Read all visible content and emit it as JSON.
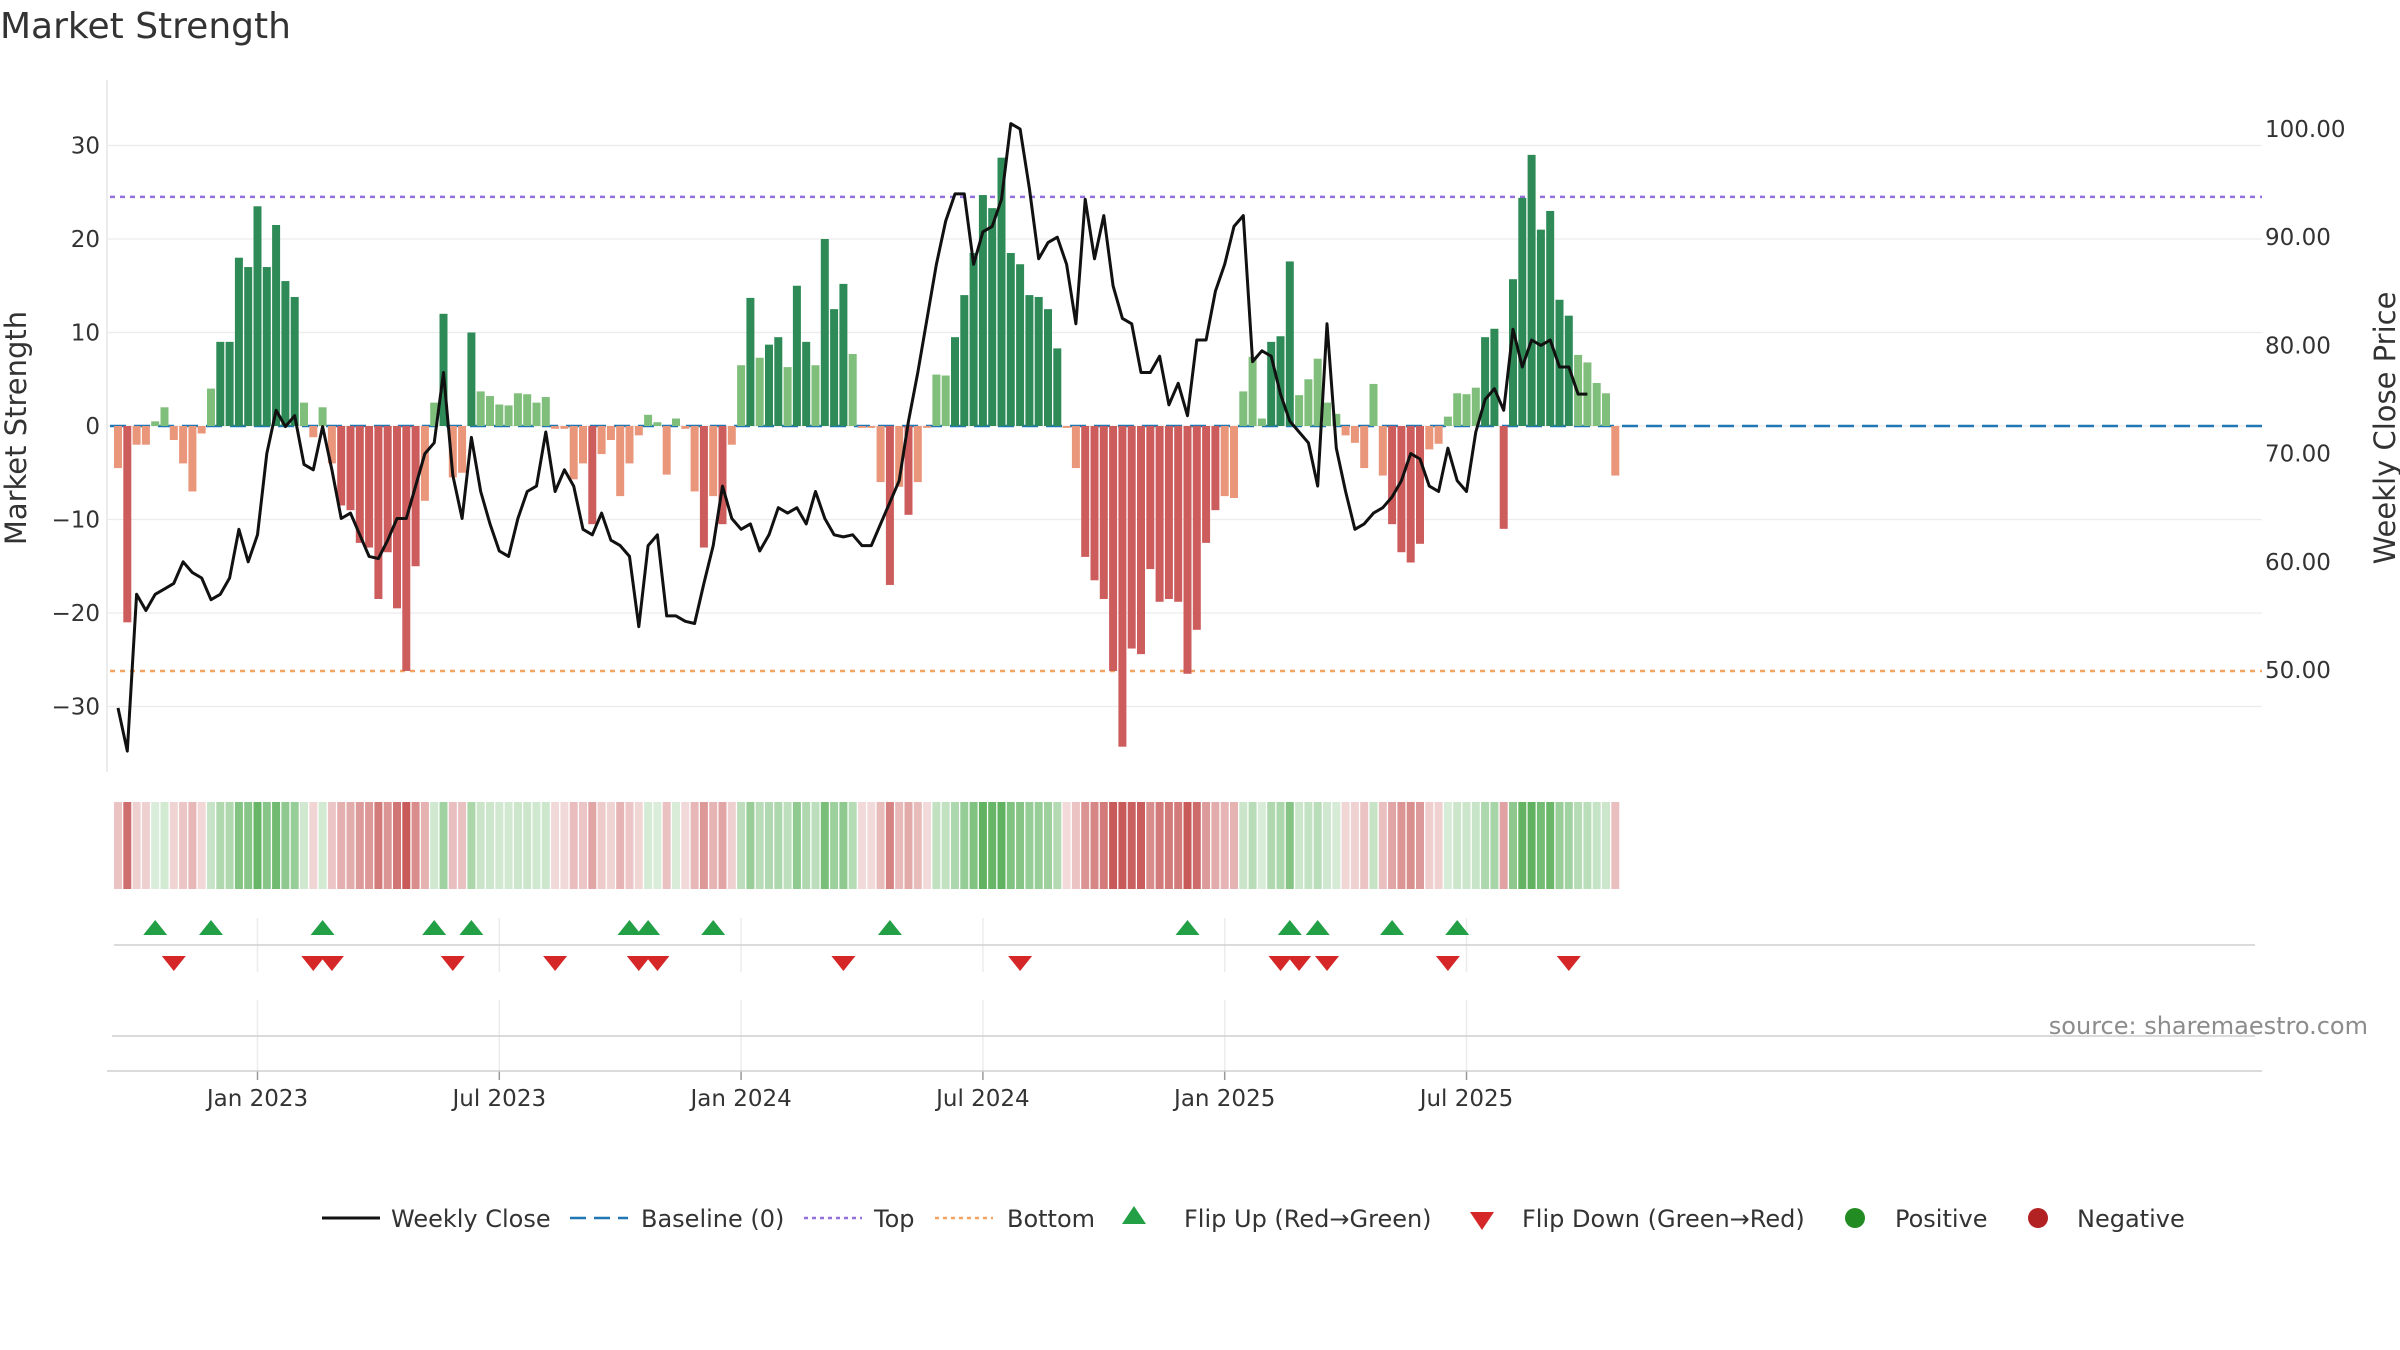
{
  "chart_data": {
    "type": "bar",
    "title": "Market Strength",
    "ylabel_left": "Market Strength",
    "ylabel_right": "Weekly Close Price",
    "source": "source: sharemaestro.com",
    "left_axis": {
      "ylim": [
        -37,
        37
      ],
      "ticks": [
        30,
        20,
        10,
        0,
        -10,
        -20,
        -30
      ],
      "tick_labels": [
        "30",
        "20",
        "10",
        "0",
        "−10",
        "−20",
        "−30"
      ]
    },
    "right_axis": {
      "ylim": [
        40.5,
        102.5
      ],
      "ticks": [
        100,
        90,
        80,
        70,
        60,
        50
      ],
      "tick_labels": [
        "100.00",
        "90.00",
        "80.00",
        "70.00",
        "60.00",
        "50.00"
      ]
    },
    "x_tick_labels": [
      "Jan 2023",
      "Jul 2023",
      "Jan 2024",
      "Jul 2024",
      "Jan 2025",
      "Jul 2025"
    ],
    "x_tick_weeks": [
      15,
      41,
      67,
      93,
      119,
      145
    ],
    "reference_lines": {
      "baseline": 0,
      "top": 24.5,
      "bottom": -26.2
    },
    "colors": {
      "strong_pos": "#2e8b57",
      "weak_pos": "#7fbf7b",
      "strong_neg": "#cd5c5c",
      "weak_neg": "#e9967a",
      "line": "#111111",
      "top": "#9370db",
      "bottom": "#f4a460",
      "baseline": "#1f77b4",
      "flip_up": "#23a046",
      "flip_down": "#d62728",
      "positive": "#228b22",
      "negative": "#b22222"
    },
    "strength": [
      -4.5,
      -21,
      -2,
      -2,
      0.5,
      2,
      -1.5,
      -4,
      -7,
      -0.8,
      4,
      9,
      9,
      18,
      17,
      23.5,
      17,
      21.5,
      15.5,
      13.8,
      2.5,
      -1.2,
      2,
      -4,
      -8.5,
      -9,
      -12.5,
      -13,
      -18.5,
      -13.5,
      -19.5,
      -26.2,
      -15,
      -8,
      2.5,
      12,
      -5.5,
      -5,
      10,
      3.7,
      3.2,
      2.3,
      2.2,
      3.5,
      3.4,
      2.5,
      3.1,
      -0.3,
      -0.3,
      -5.7,
      -4,
      -10.5,
      -3,
      -1.5,
      -7.5,
      -4,
      -1,
      1.2,
      0.4,
      -5.2,
      0.8,
      -0.3,
      -7,
      -13,
      -7.5,
      -10.5,
      -2,
      6.5,
      13.7,
      7.3,
      8.7,
      9.5,
      6.3,
      15,
      9,
      6.5,
      20,
      12.5,
      15.2,
      7.7,
      -0.2,
      -0.2,
      -6,
      -17,
      -6.5,
      -9.5,
      -6,
      -0.2,
      5.5,
      5.4,
      9.5,
      14,
      18.5,
      24.7,
      23.3,
      28.7,
      18.5,
      17.3,
      14,
      13.8,
      12.5,
      8.3,
      -0.2,
      -4.5,
      -14,
      -16.5,
      -18.5,
      -26.2,
      -34.3,
      -23.8,
      -24.4,
      -15.3,
      -18.8,
      -18.5,
      -18.8,
      -26.5,
      -21.8,
      -12.5,
      -9,
      -7.5,
      -7.7,
      3.7,
      7.4,
      0.8,
      9,
      9.6,
      17.6,
      3.3,
      5,
      7.2,
      2.5,
      1.3,
      -1,
      -1.8,
      -4.5,
      4.5,
      -5.3,
      -10.5,
      -13.5,
      -14.6,
      -12.6,
      -2.5,
      -1.9,
      1,
      3.5,
      3.4,
      4.1,
      9.5,
      10.4,
      -11,
      15.7,
      24.4,
      29,
      21,
      23,
      13.5,
      11.8,
      7.6,
      6.8,
      4.6,
      3.5,
      -5.3
    ],
    "weekly_close": [
      46.5,
      42.5,
      57,
      55.5,
      57,
      57.5,
      58,
      60,
      59,
      58.5,
      56.5,
      57,
      58.5,
      63,
      60,
      62.5,
      70,
      74,
      72.5,
      73.5,
      69,
      68.5,
      72.5,
      68.5,
      64,
      64.5,
      62.5,
      60.5,
      60.3,
      62,
      64,
      64,
      67,
      70,
      71,
      77.5,
      68,
      64,
      71.5,
      66.5,
      63.5,
      61,
      60.5,
      64,
      66.5,
      67,
      72,
      66.5,
      68.5,
      67,
      63,
      62.5,
      64.5,
      62,
      61.5,
      60.5,
      54,
      61.5,
      62.5,
      55,
      55,
      54.5,
      54.3,
      58,
      61.5,
      67,
      64,
      63,
      63.5,
      61,
      62.5,
      65,
      64.5,
      65,
      63.5,
      66.5,
      64,
      62.5,
      62.3,
      62.5,
      61.5,
      61.5,
      63.5,
      65.5,
      67.5,
      73,
      77.5,
      82.5,
      87.5,
      91.5,
      94,
      94,
      87.5,
      90.5,
      91,
      93.5,
      100.5,
      100,
      94.5,
      88,
      89.5,
      90,
      87.5,
      82,
      93.5,
      88,
      92,
      85.5,
      82.5,
      82,
      77.5,
      77.5,
      79,
      74.5,
      76.5,
      73.5,
      80.5,
      80.5,
      85,
      87.5,
      91,
      92,
      78.5,
      79.5,
      79,
      75.5,
      73,
      72,
      71,
      67,
      82,
      70.5,
      66.5,
      63,
      63.5,
      64.5,
      65,
      66,
      67.5,
      70,
      69.5,
      67,
      66.5,
      70.5,
      67.5,
      66.5,
      72,
      75,
      76,
      74,
      81.5,
      78,
      80.5,
      80,
      80.5,
      78,
      78,
      75.5,
      75.5
    ],
    "flip_up_weeks": [
      4,
      10,
      22,
      34,
      38,
      55,
      57,
      64,
      83,
      115,
      126,
      129,
      137,
      144
    ],
    "flip_down_weeks": [
      6,
      21,
      23,
      36,
      47,
      56,
      58,
      78,
      97,
      125,
      127,
      130,
      143,
      156
    ],
    "legend": [
      "Weekly Close",
      "Baseline (0)",
      "Top",
      "Bottom",
      "Flip Up (Red→Green)",
      "Flip Down (Green→Red)",
      "Positive",
      "Negative"
    ]
  }
}
